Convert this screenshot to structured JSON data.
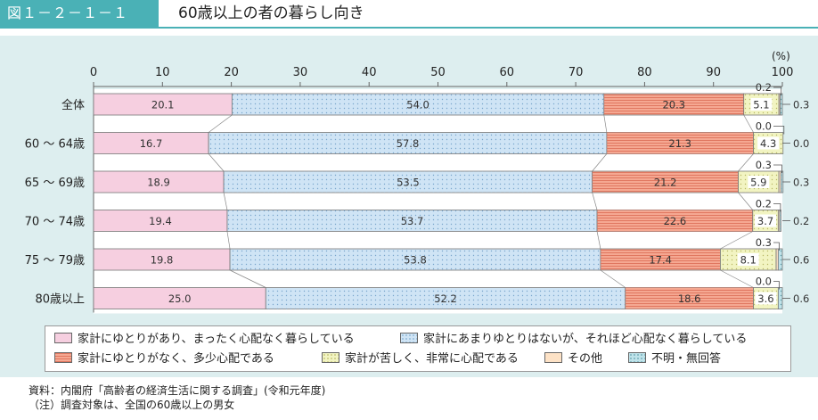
{
  "header": {
    "figure_label": "図１－２－１－１",
    "title": "60歳以上の者の暮らし向き"
  },
  "chart_data": {
    "type": "bar",
    "orientation": "horizontal",
    "stacked": true,
    "xlim": [
      0,
      100
    ],
    "x_ticks": [
      "0",
      "10",
      "20",
      "30",
      "40",
      "50",
      "60",
      "70",
      "80",
      "90",
      "100"
    ],
    "unit_label": "(%)",
    "categories": [
      "全体",
      "60 ～ 64歳",
      "65 ～ 69歳",
      "70 ～ 74歳",
      "75 ～ 79歳",
      "80歳以上"
    ],
    "series": [
      {
        "name": "家計にゆとりがあり、まったく心配なく暮らしている",
        "color": "#f6cfe0",
        "pattern": "none",
        "values": [
          20.1,
          16.7,
          18.9,
          19.4,
          19.8,
          25.0
        ],
        "labels": [
          "20.1",
          "16.7",
          "18.9",
          "19.4",
          "19.8",
          "25.0"
        ]
      },
      {
        "name": "家計にあまりゆとりはないが、それほど心配なく暮らしている",
        "color": "#cfe4f5",
        "pattern": "dots",
        "values": [
          54.0,
          57.8,
          53.5,
          53.7,
          53.8,
          52.2
        ],
        "labels": [
          "54.0",
          "57.8",
          "53.5",
          "53.7",
          "53.8",
          "52.2"
        ]
      },
      {
        "name": "家計にゆとりがなく、多少心配である",
        "color": "#f5a892",
        "pattern": "hlines",
        "values": [
          20.3,
          21.3,
          21.2,
          22.6,
          17.4,
          18.6
        ],
        "labels": [
          "20.3",
          "21.3",
          "21.2",
          "22.6",
          "17.4",
          "18.6"
        ]
      },
      {
        "name": "家計が苦しく、非常に心配である",
        "color": "#f2f4c2",
        "pattern": "dots",
        "values": [
          5.1,
          4.3,
          5.9,
          3.7,
          8.1,
          3.6
        ],
        "labels": [
          "5.1",
          "4.3",
          "5.9",
          "3.7",
          "8.1",
          "3.6"
        ]
      },
      {
        "name": "その他",
        "color": "#fde2c6",
        "pattern": "none",
        "values": [
          0.2,
          0.0,
          0.3,
          0.2,
          0.3,
          0.0
        ],
        "labels": [
          "0.2",
          "0.0",
          "0.3",
          "0.2",
          "0.3",
          "0.0"
        ]
      },
      {
        "name": "不明・無回答",
        "color": "#bfe3ea",
        "pattern": "dots",
        "values": [
          0.3,
          0.0,
          0.3,
          0.2,
          0.6,
          0.6
        ],
        "labels": [
          "0.3",
          "0.0",
          "0.3",
          "0.2",
          "0.6",
          "0.6"
        ]
      }
    ],
    "grid": false,
    "legend_position": "bottom"
  },
  "notes": {
    "source": "資料：内閣府「高齢者の経済生活に関する調査」(令和元年度)",
    "note": "（注）調査対象は、全国の60歳以上の男女"
  }
}
